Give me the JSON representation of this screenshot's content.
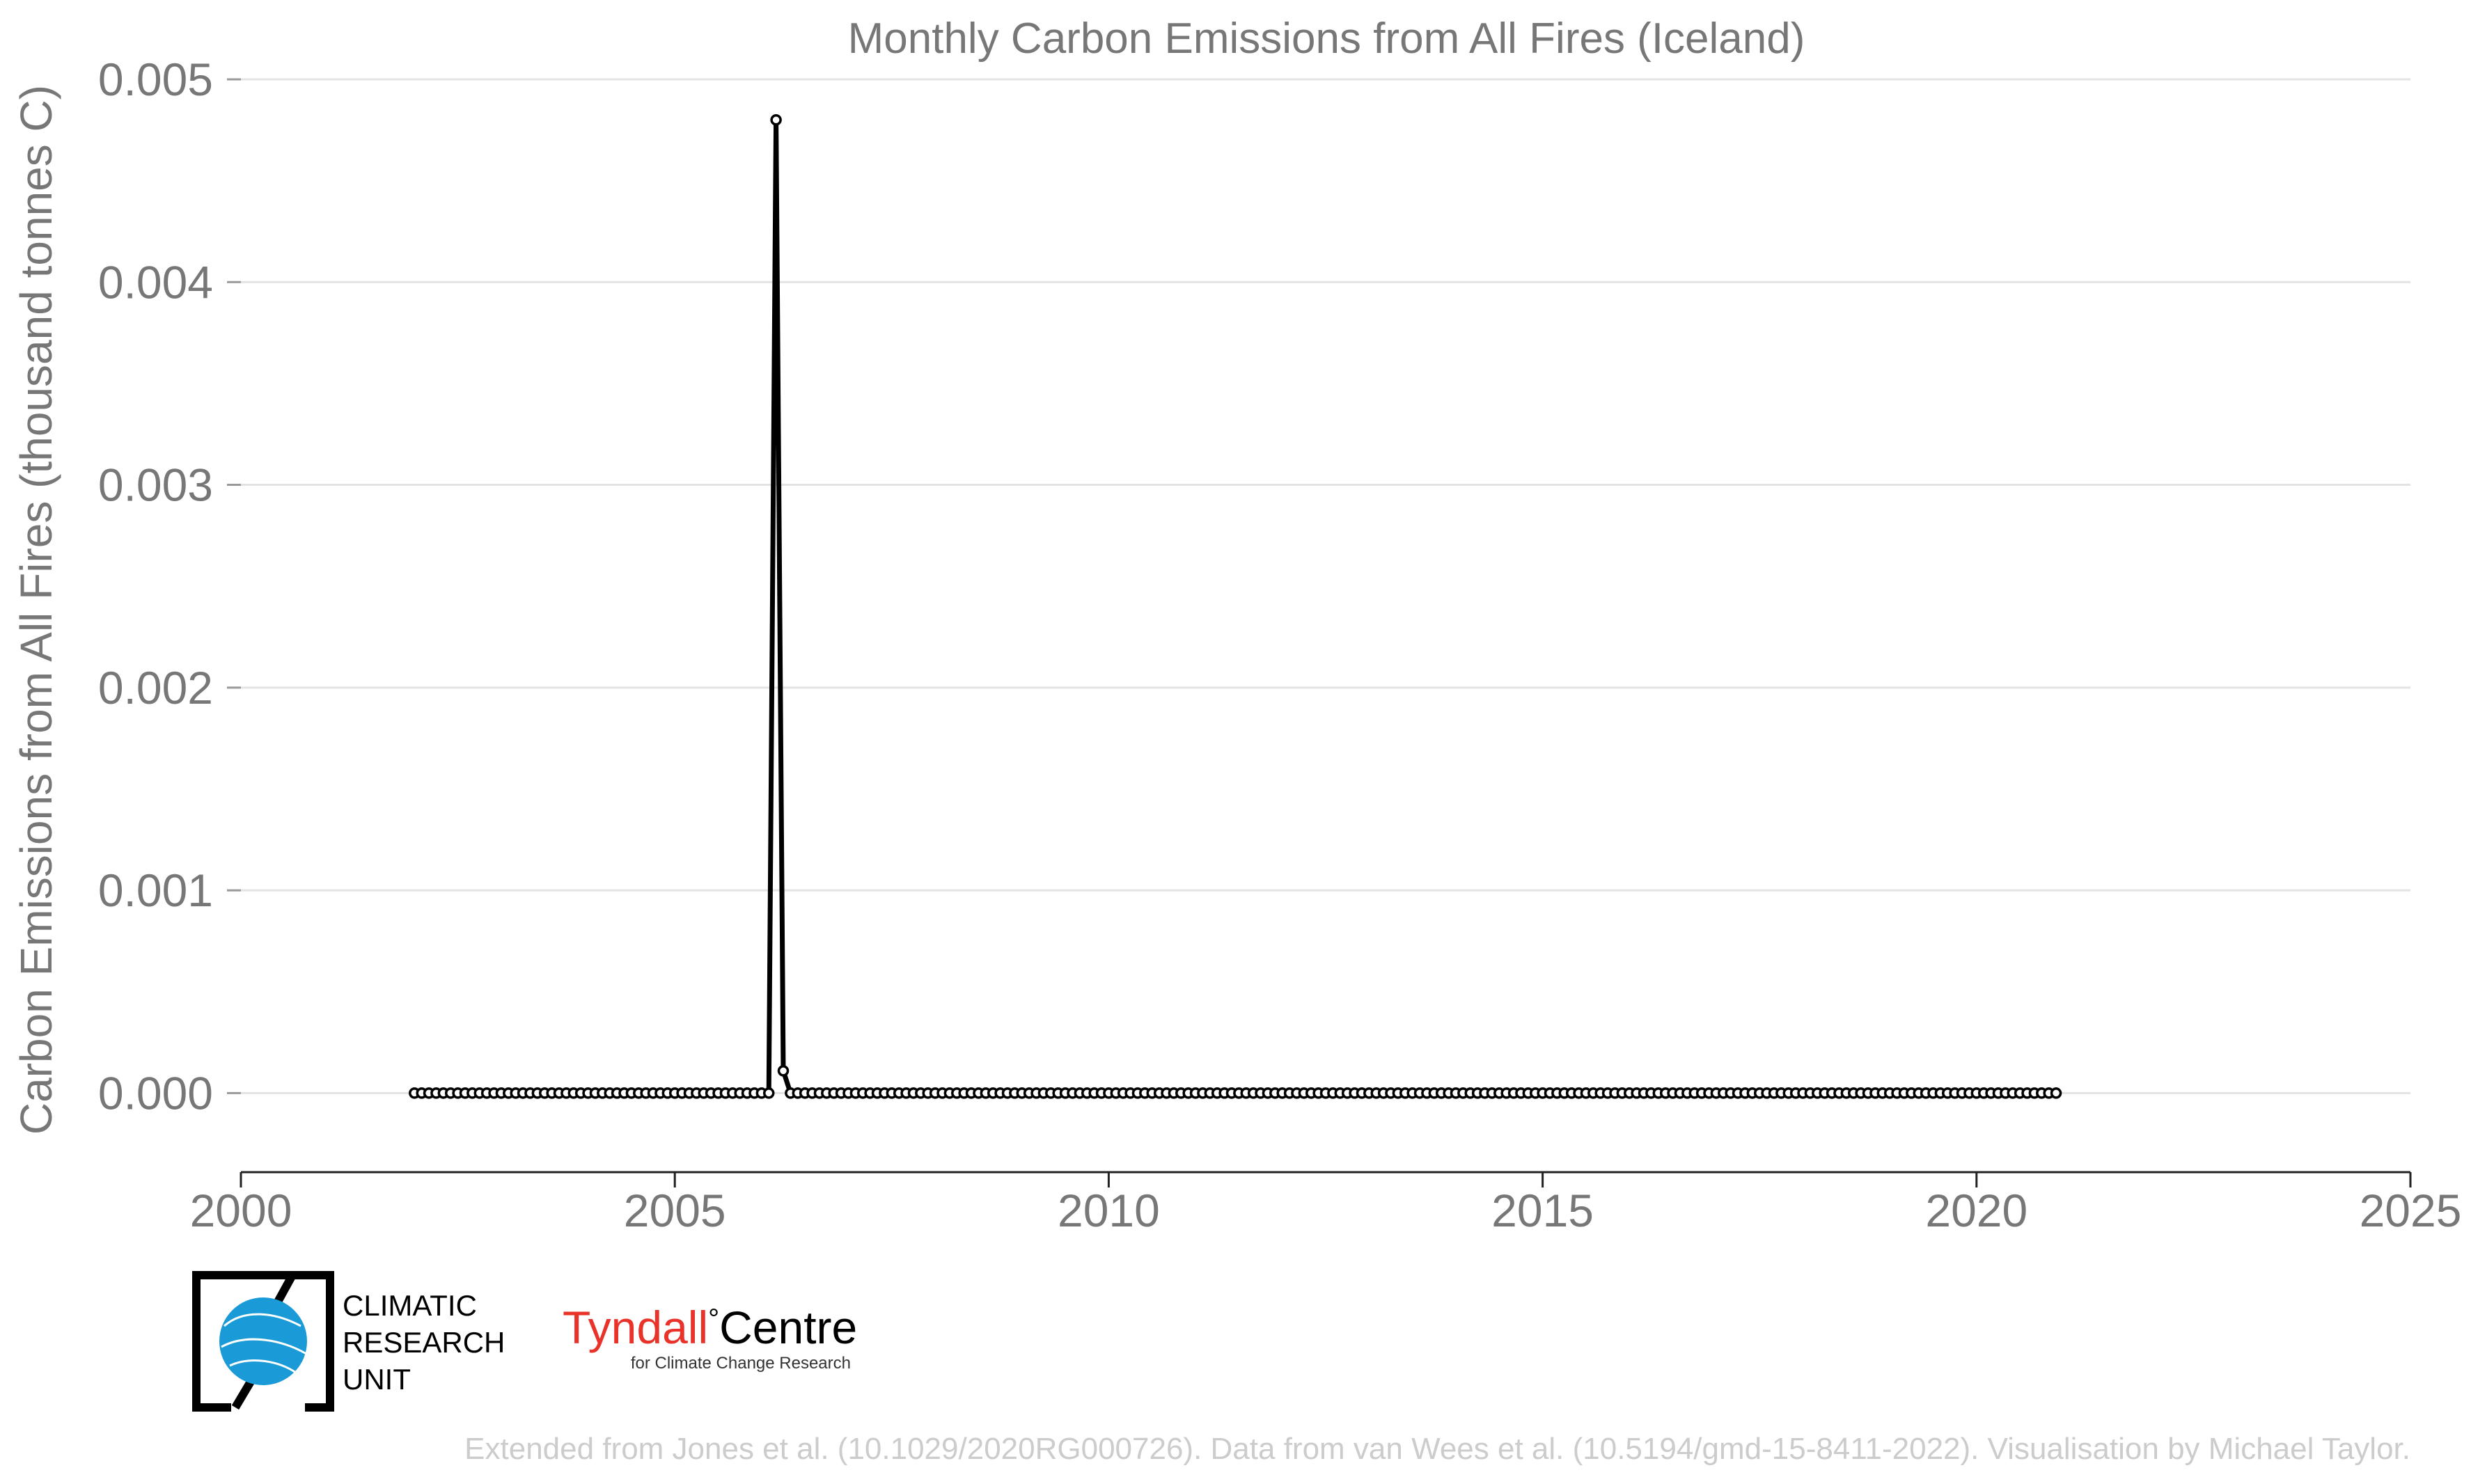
{
  "chart_data": {
    "type": "line",
    "title": "Monthly Carbon Emissions from All Fires (Iceland)",
    "xlabel": "",
    "ylabel": "Carbon Emissions from All Fires (thousand tonnes C)",
    "xlim": [
      2000,
      2025
    ],
    "ylim": [
      -0.00039,
      0.005
    ],
    "xticks": [
      "2000",
      "2005",
      "2010",
      "2015",
      "2020",
      "2025"
    ],
    "yticks": [
      "0.000",
      "0.001",
      "0.002",
      "0.003",
      "0.004",
      "0.005"
    ],
    "grid": true,
    "legend": "none",
    "line_color": "#000000",
    "marker": "open-circle",
    "series": [
      {
        "x_start": "2002-01",
        "x_end": "2020-12",
        "frequency": "monthly",
        "baseline_value": 0.0,
        "nonzero_points": [
          {
            "date": "2006-03",
            "value": 0.0048
          },
          {
            "date": "2006-04",
            "value": 0.00011
          }
        ]
      }
    ]
  },
  "credit": "Extended from Jones et al. (10.1029/2020RG000726). Data from van Wees et al. (10.5194/gmd-15-8411-2022). Visualisation by Michael Taylor.",
  "logos": {
    "cru_lines": [
      "CLIMATIC",
      "RESEARCH",
      "UNIT"
    ],
    "tyndall_main": "Tyndall",
    "tyndall_degree": "°",
    "tyndall_centre": "Centre",
    "tyndall_sub": "for Climate Change Research",
    "cru_blue": "#1a9bd7",
    "tyndall_red": "#e8322a"
  }
}
